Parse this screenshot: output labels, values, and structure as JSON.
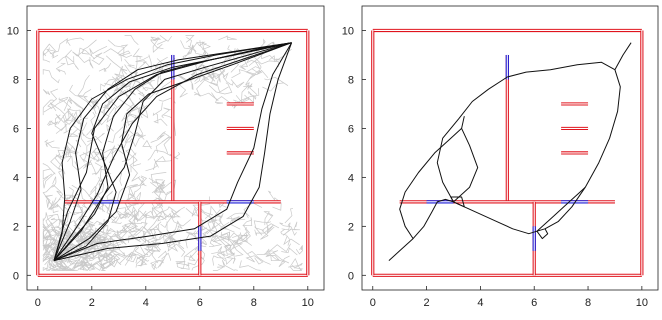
{
  "colors": {
    "wall": "#e0141e",
    "door": "#1a1ad6",
    "path": "#111111",
    "tree": "#c9c9c9",
    "axis": "#222222"
  },
  "axes": {
    "x_ticks": [
      "0",
      "2",
      "4",
      "6",
      "8",
      "10"
    ],
    "y_ticks": [
      "0",
      "2",
      "4",
      "6",
      "8",
      "10"
    ],
    "xlim": [
      -0.4,
      10.6
    ],
    "ylim": [
      -0.6,
      11.0
    ]
  },
  "panels": [
    {
      "id": "left",
      "content": "explored-tree-with-paths",
      "paths": [
        [
          [
            0.6,
            0.6
          ],
          [
            1.3,
            1.5
          ],
          [
            2.1,
            2.5
          ],
          [
            2.6,
            3.6
          ],
          [
            2.4,
            5.0
          ],
          [
            2.8,
            6.5
          ],
          [
            3.6,
            7.6
          ],
          [
            4.6,
            8.3
          ],
          [
            5.6,
            8.6
          ],
          [
            7.2,
            9.0
          ],
          [
            8.4,
            9.3
          ],
          [
            9.4,
            9.5
          ]
        ],
        [
          [
            0.6,
            0.6
          ],
          [
            1.6,
            1.8
          ],
          [
            2.4,
            3.2
          ],
          [
            3.2,
            4.4
          ],
          [
            3.6,
            5.8
          ],
          [
            3.9,
            7.1
          ],
          [
            4.7,
            8.0
          ],
          [
            6.2,
            8.5
          ],
          [
            7.8,
            9.0
          ],
          [
            9.4,
            9.5
          ]
        ],
        [
          [
            0.6,
            0.6
          ],
          [
            1.2,
            2.2
          ],
          [
            1.6,
            3.5
          ],
          [
            1.4,
            5.0
          ],
          [
            1.7,
            6.4
          ],
          [
            2.6,
            7.6
          ],
          [
            3.7,
            8.4
          ],
          [
            5.2,
            8.8
          ],
          [
            7.0,
            9.1
          ],
          [
            9.4,
            9.5
          ]
        ],
        [
          [
            0.6,
            0.6
          ],
          [
            1.9,
            1.5
          ],
          [
            2.9,
            2.6
          ],
          [
            3.4,
            4.1
          ],
          [
            3.1,
            5.4
          ],
          [
            3.3,
            6.6
          ],
          [
            4.1,
            7.4
          ],
          [
            5.4,
            7.9
          ],
          [
            7.2,
            8.6
          ],
          [
            9.4,
            9.5
          ]
        ],
        [
          [
            0.6,
            0.6
          ],
          [
            1.4,
            1.9
          ],
          [
            2.2,
            3.3
          ],
          [
            2.8,
            4.8
          ],
          [
            3.5,
            6.2
          ],
          [
            4.4,
            7.3
          ],
          [
            5.9,
            8.2
          ],
          [
            7.8,
            8.9
          ],
          [
            9.4,
            9.5
          ]
        ],
        [
          [
            0.6,
            0.6
          ],
          [
            1.8,
            1.2
          ],
          [
            2.6,
            2.2
          ],
          [
            2.9,
            3.4
          ],
          [
            2.5,
            4.5
          ],
          [
            2.0,
            5.8
          ],
          [
            2.4,
            7.0
          ],
          [
            3.4,
            7.9
          ],
          [
            5.0,
            8.5
          ],
          [
            7.3,
            9.0
          ],
          [
            9.4,
            9.5
          ]
        ],
        [
          [
            0.6,
            0.6
          ],
          [
            2.6,
            1.1
          ],
          [
            4.6,
            1.3
          ],
          [
            6.4,
            1.6
          ],
          [
            7.6,
            2.4
          ],
          [
            8.2,
            3.6
          ],
          [
            8.4,
            5.0
          ],
          [
            8.6,
            6.6
          ],
          [
            8.9,
            8.0
          ],
          [
            9.4,
            9.5
          ]
        ],
        [
          [
            0.6,
            0.6
          ],
          [
            2.2,
            1.3
          ],
          [
            4.1,
            1.6
          ],
          [
            5.8,
            1.9
          ],
          [
            7.0,
            2.7
          ],
          [
            7.4,
            3.8
          ],
          [
            8.0,
            5.2
          ],
          [
            8.3,
            6.8
          ],
          [
            8.7,
            8.2
          ],
          [
            9.4,
            9.5
          ]
        ],
        [
          [
            0.6,
            0.6
          ],
          [
            0.9,
            1.7
          ],
          [
            1.0,
            3.2
          ],
          [
            0.9,
            4.6
          ],
          [
            1.2,
            6.0
          ],
          [
            2.0,
            7.2
          ],
          [
            3.3,
            8.0
          ],
          [
            4.8,
            8.6
          ],
          [
            6.6,
            9.0
          ],
          [
            9.4,
            9.5
          ]
        ],
        [
          [
            0.6,
            0.6
          ],
          [
            1.1,
            2.6
          ],
          [
            1.8,
            4.2
          ],
          [
            2.1,
            6.0
          ],
          [
            3.0,
            7.3
          ],
          [
            4.4,
            8.2
          ],
          [
            6.4,
            8.8
          ],
          [
            9.4,
            9.5
          ]
        ]
      ]
    },
    {
      "id": "right",
      "content": "single-solution-path",
      "paths": [
        [
          [
            0.6,
            0.6
          ],
          [
            1.0,
            1.0
          ],
          [
            1.5,
            1.5
          ],
          [
            1.9,
            2.0
          ],
          [
            2.2,
            2.6
          ],
          [
            2.4,
            3.0
          ],
          [
            2.7,
            3.1
          ],
          [
            3.0,
            3.0
          ]
        ],
        [
          [
            3.0,
            3.0
          ],
          [
            3.8,
            2.6
          ],
          [
            4.6,
            2.2
          ],
          [
            5.2,
            1.9
          ],
          [
            5.8,
            1.7
          ],
          [
            6.1,
            1.8
          ],
          [
            6.4,
            1.9
          ]
        ],
        [
          [
            6.4,
            1.9
          ],
          [
            6.9,
            2.2
          ],
          [
            7.4,
            2.8
          ],
          [
            7.9,
            3.6
          ],
          [
            8.4,
            4.6
          ],
          [
            8.8,
            5.6
          ],
          [
            9.1,
            6.7
          ],
          [
            9.2,
            7.7
          ],
          [
            9.0,
            8.4
          ],
          [
            9.3,
            9.0
          ],
          [
            9.6,
            9.5
          ]
        ],
        [
          [
            3.0,
            3.0
          ],
          [
            2.6,
            3.8
          ],
          [
            2.4,
            4.6
          ],
          [
            2.6,
            5.6
          ],
          [
            3.2,
            6.4
          ],
          [
            3.7,
            7.1
          ],
          [
            4.3,
            7.6
          ],
          [
            5.0,
            8.1
          ],
          [
            5.7,
            8.3
          ],
          [
            6.6,
            8.4
          ],
          [
            7.6,
            8.6
          ],
          [
            8.5,
            8.7
          ],
          [
            9.0,
            8.4
          ]
        ],
        [
          [
            3.0,
            3.0
          ],
          [
            3.6,
            3.6
          ],
          [
            3.9,
            4.4
          ],
          [
            3.6,
            5.3
          ],
          [
            3.3,
            6.0
          ],
          [
            3.4,
            6.5
          ]
        ],
        [
          [
            1.5,
            1.5
          ],
          [
            1.2,
            2.0
          ],
          [
            1.0,
            2.7
          ],
          [
            1.2,
            3.4
          ],
          [
            1.7,
            4.2
          ],
          [
            2.3,
            5.0
          ],
          [
            2.8,
            5.5
          ],
          [
            3.3,
            6.0
          ]
        ],
        [
          [
            6.1,
            1.8
          ],
          [
            6.7,
            2.4
          ],
          [
            7.3,
            3.0
          ],
          [
            7.7,
            3.4
          ],
          [
            7.9,
            3.6
          ]
        ],
        [
          [
            3.0,
            3.0
          ],
          [
            3.4,
            2.8
          ],
          [
            3.3,
            3.2
          ],
          [
            2.9,
            3.2
          ],
          [
            3.0,
            3.0
          ]
        ],
        [
          [
            6.1,
            1.8
          ],
          [
            6.3,
            1.5
          ],
          [
            6.5,
            1.7
          ],
          [
            6.4,
            1.9
          ]
        ]
      ]
    }
  ]
}
